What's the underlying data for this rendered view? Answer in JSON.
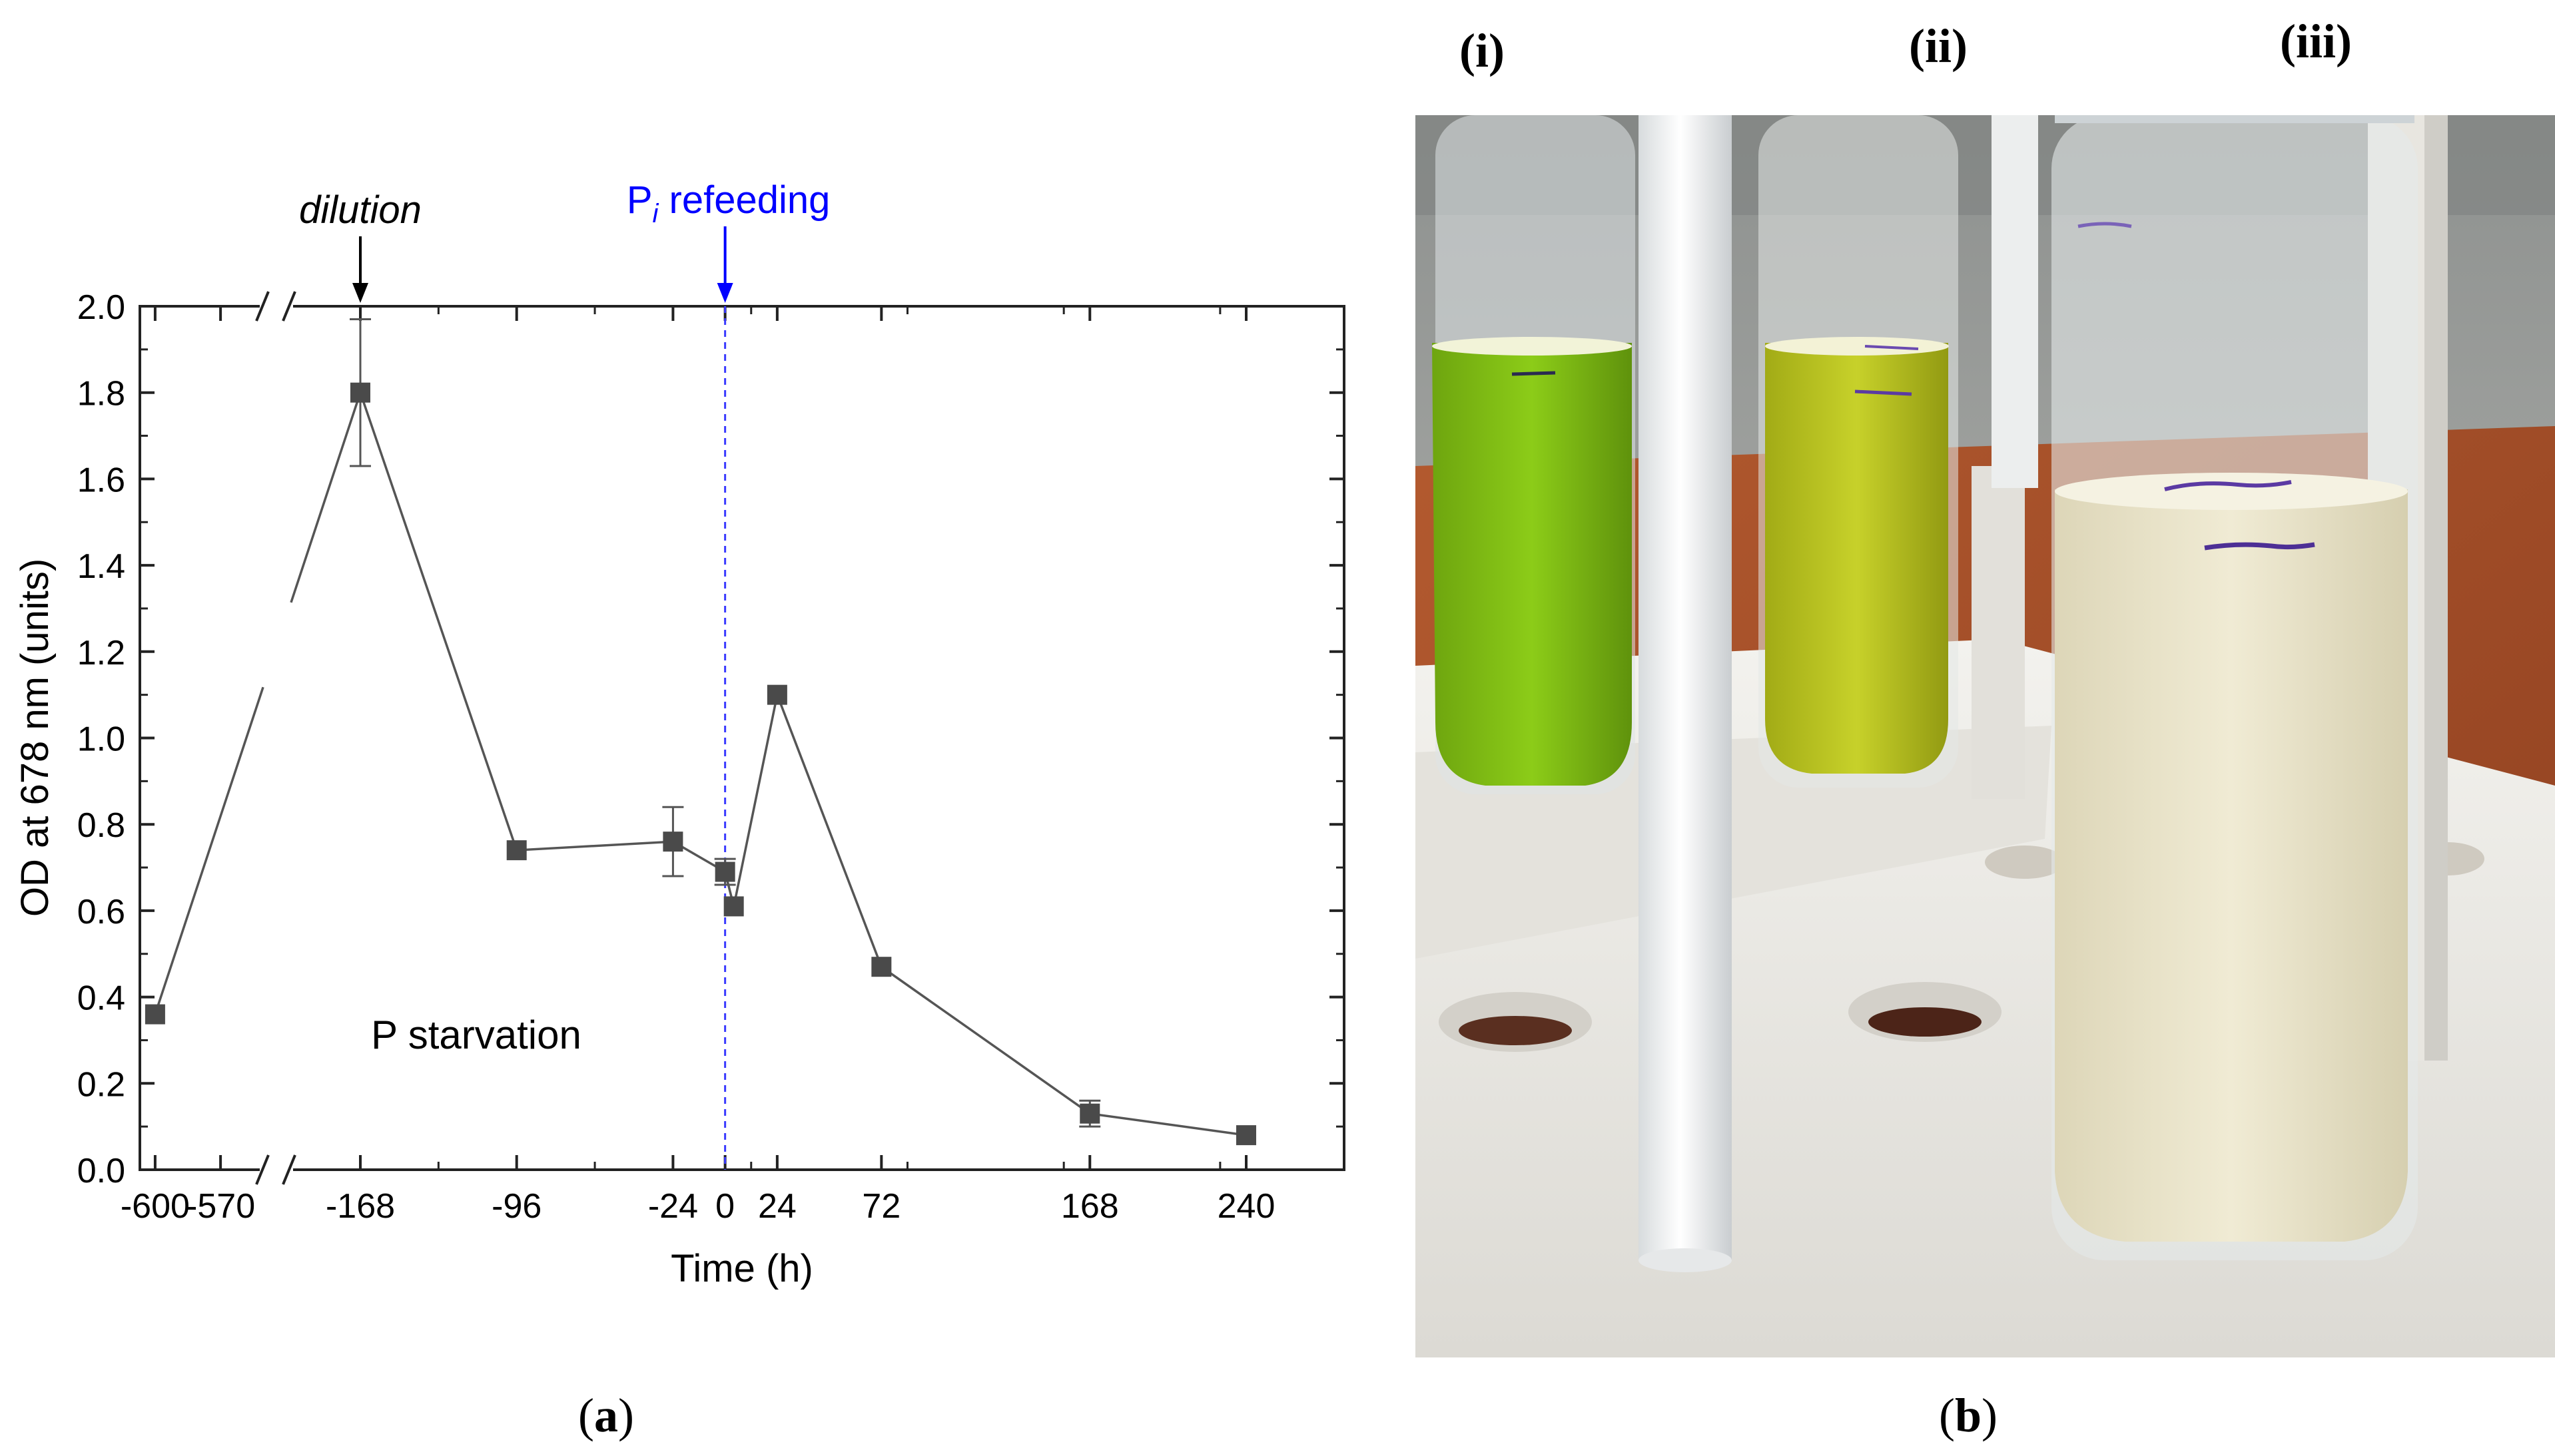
{
  "panel_a": {
    "label_open": "(",
    "label_letter": "a",
    "label_close": ")"
  },
  "panel_b": {
    "label_open": "(",
    "label_letter": "b",
    "label_close": ")",
    "tube_labels": [
      "(i)",
      "(ii)",
      "(iii)"
    ],
    "colors": {
      "background_wall": "#9a9c9a",
      "table_wood": "#b0552c",
      "rack_white": "#f1efea",
      "rack_shadow": "#d6d4cf",
      "tube_i_liquid": "#7fba12",
      "tube_ii_liquid": "#b6c21d",
      "tube_iii_liquid": "#e9e3c9",
      "glass": "#e7ecef",
      "marker_purple": "#5b3aa3"
    }
  },
  "chart_data": {
    "type": "line",
    "xlabel": "Time (h)",
    "ylabel": "OD at 678 nm (units)",
    "ylim": [
      0,
      2.0
    ],
    "yticks": [
      0.0,
      0.2,
      0.4,
      0.6,
      0.8,
      1.0,
      1.2,
      1.4,
      1.6,
      1.8,
      2.0
    ],
    "ytick_labels": [
      "0.0",
      "0.2",
      "0.4",
      "0.6",
      "0.8",
      "1.0",
      "1.2",
      "1.4",
      "1.6",
      "1.8",
      "2.0"
    ],
    "x_axis_break": {
      "between": [
        -570,
        -168
      ]
    },
    "xticks": [
      -600,
      -570,
      -168,
      -96,
      -24,
      0,
      24,
      72,
      168,
      240
    ],
    "xtick_labels": [
      "-600",
      "-570",
      "-168",
      "-96",
      "-24",
      "0",
      "24",
      "72",
      "168",
      "240"
    ],
    "grid": false,
    "series": [
      {
        "marker": "square",
        "color": "#4a4a4a",
        "points": [
          {
            "x": -600,
            "y": 0.36,
            "err": 0
          },
          {
            "x": -168,
            "y": 1.8,
            "err": 0.17
          },
          {
            "x": -96,
            "y": 0.74,
            "err": 0
          },
          {
            "x": -24,
            "y": 0.76,
            "err": 0.08
          },
          {
            "x": 0,
            "y": 0.69,
            "err": 0.03
          },
          {
            "x": 4,
            "y": 0.61,
            "err": 0
          },
          {
            "x": 24,
            "y": 1.1,
            "err": 0
          },
          {
            "x": 72,
            "y": 0.47,
            "err": 0
          },
          {
            "x": 168,
            "y": 0.13,
            "err": 0.03
          },
          {
            "x": 240,
            "y": 0.08,
            "err": 0
          }
        ]
      }
    ],
    "annotations": {
      "dilution": {
        "text": "dilution",
        "x": -168
      },
      "refeeding": {
        "text_main": "P",
        "text_sub": "i",
        "text_rest": " refeeding",
        "x": 0,
        "color": "#0000ff"
      },
      "region_label": "P starvation"
    }
  }
}
